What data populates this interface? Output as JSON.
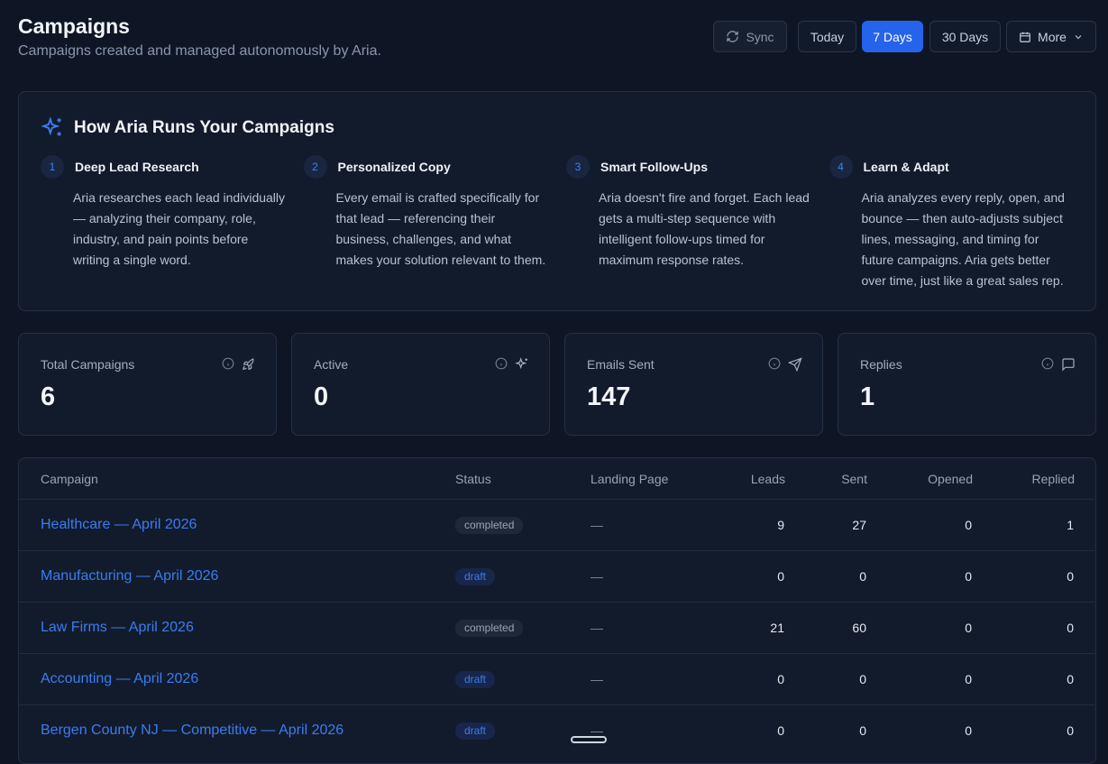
{
  "header": {
    "title": "Campaigns",
    "subtitle": "Campaigns created and managed autonomously by Aria."
  },
  "toolbar": {
    "sync": "Sync",
    "ranges": [
      {
        "label": "Today",
        "selected": false
      },
      {
        "label": "7 Days",
        "selected": true
      },
      {
        "label": "30 Days",
        "selected": false
      }
    ],
    "more": "More"
  },
  "how": {
    "title": "How Aria Runs Your Campaigns",
    "steps": [
      {
        "number": 1,
        "title": "Deep Lead Research",
        "text": "Aria researches each lead individually — analyzing their company, role, industry, and pain points before writing a single word."
      },
      {
        "number": 2,
        "title": "Personalized Copy",
        "text": "Every email is crafted specifically for that lead — referencing their business, challenges, and what makes your solution relevant to them."
      },
      {
        "number": 3,
        "title": "Smart Follow-Ups",
        "text": "Aria doesn't fire and forget. Each lead gets a multi-step sequence with intelligent follow-ups timed for maximum response rates."
      },
      {
        "number": 4,
        "title": "Learn & Adapt",
        "text": "Aria analyzes every reply, open, and bounce — then auto-adjusts subject lines, messaging, and timing for future campaigns. Aria gets better over time, just like a great sales rep."
      }
    ]
  },
  "stats": [
    {
      "label": "Total Campaigns",
      "value": 6
    },
    {
      "label": "Active",
      "value": 0
    },
    {
      "label": "Emails Sent",
      "value": 147
    },
    {
      "label": "Replies",
      "value": 1
    }
  ],
  "table": {
    "columns": [
      "Campaign",
      "Status",
      "Landing Page",
      "Leads",
      "Sent",
      "Opened",
      "Replied"
    ],
    "rows": [
      {
        "campaign": "Healthcare — April 2026",
        "status": "completed",
        "status_color": "#9aa4b5",
        "status_bg": "#1e2839",
        "landing_page": "—",
        "leads": 9,
        "sent": 27,
        "opened": 0,
        "replied": 1
      },
      {
        "campaign": "Manufacturing — April 2026",
        "status": "draft",
        "status_color": "#3b7cf0",
        "status_bg": "#17264a",
        "landing_page": "—",
        "leads": 0,
        "sent": 0,
        "opened": 0,
        "replied": 0
      },
      {
        "campaign": "Law Firms — April 2026",
        "status": "completed",
        "status_color": "#9aa4b5",
        "status_bg": "#1e2839",
        "landing_page": "—",
        "leads": 21,
        "sent": 60,
        "opened": 0,
        "replied": 0
      },
      {
        "campaign": "Accounting — April 2026",
        "status": "draft",
        "status_color": "#3b7cf0",
        "status_bg": "#17264a",
        "landing_page": "—",
        "leads": 0,
        "sent": 0,
        "opened": 0,
        "replied": 0
      },
      {
        "campaign": "Bergen County NJ — Competitive — April 2026",
        "status": "draft",
        "status_color": "#3b7cf0",
        "status_bg": "#17264a",
        "landing_page": "—",
        "leads": 0,
        "sent": 0,
        "opened": 0,
        "replied": 0
      }
    ]
  }
}
